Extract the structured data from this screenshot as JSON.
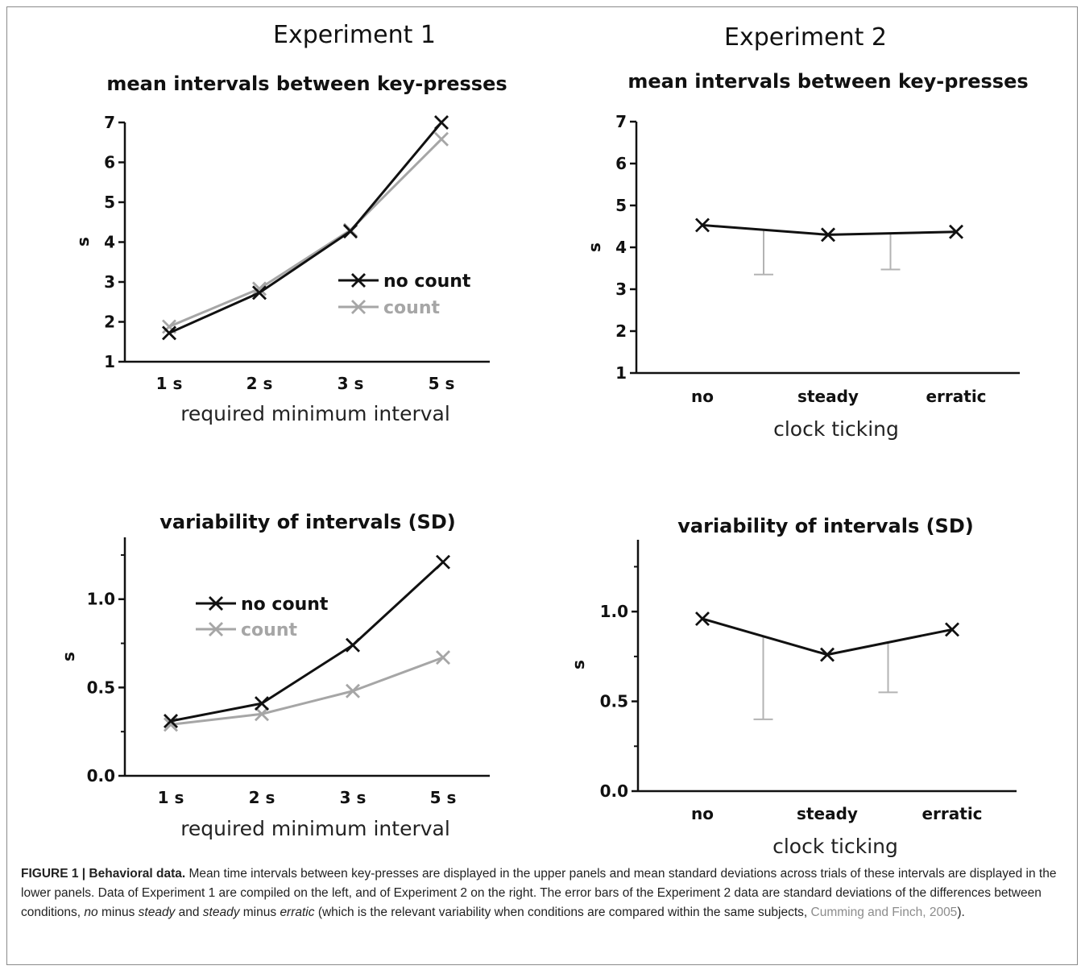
{
  "figure": {
    "experiment_titles": [
      "Experiment 1",
      "Experiment 2"
    ],
    "caption": {
      "label": "FIGURE 1 | Behavioral data.",
      "part1": " Mean time intervals between key-presses are displayed in the upper panels and mean standard deviations across trials of these intervals are displayed in the lower panels. Data of Experiment 1 are compiled on the left, and of Experiment 2 on the right. The error bars of the Experiment 2 data are standard deviations of the differences between conditions, ",
      "em1": "no",
      "part2": " minus ",
      "em2": "steady",
      "part3": " and ",
      "em3": "steady",
      "part4": " minus ",
      "em4": "erratic",
      "part5": " (which is the relevant variability when conditions are compared within the same subjects, ",
      "citation": "Cumming and Finch, 2005",
      "part6": ")."
    }
  },
  "colors": {
    "no_count": "#111111",
    "count": "#a6a6a6",
    "error_bar": "#b3b3b3",
    "axis": "#111111"
  },
  "chart_data": [
    {
      "type": "line",
      "title": "mean intervals between key-presses",
      "xlabel": "required minimum interval",
      "ylabel": "s",
      "categories": [
        "1 s",
        "2 s",
        "3 s",
        "5 s"
      ],
      "ylim": [
        1,
        7
      ],
      "yticks": [
        1,
        2,
        3,
        4,
        5,
        6,
        7
      ],
      "ytick_labels": [
        "1",
        "2",
        "3",
        "4",
        "5",
        "6",
        "7"
      ],
      "legend": "middle-right",
      "series": [
        {
          "name": "no count",
          "values": [
            1.72,
            2.73,
            4.27,
            7.0
          ]
        },
        {
          "name": "count",
          "values": [
            1.88,
            2.83,
            4.3,
            6.58
          ]
        }
      ]
    },
    {
      "type": "line",
      "title": "mean intervals between key-presses",
      "xlabel": "clock ticking",
      "ylabel": "s",
      "categories": [
        "no",
        "steady",
        "erratic"
      ],
      "ylim": [
        1,
        7
      ],
      "yticks": [
        1,
        2,
        3,
        4,
        5,
        6,
        7
      ],
      "ytick_labels": [
        "1",
        "2",
        "3",
        "4",
        "5",
        "6",
        "7"
      ],
      "series": [
        {
          "values": [
            4.53,
            4.3,
            4.37
          ]
        }
      ],
      "error_bars": [
        {
          "between": [
            0,
            1
          ],
          "top": 4.4,
          "bottom": 3.35
        },
        {
          "between": [
            1,
            2
          ],
          "top": 4.33,
          "bottom": 3.47
        }
      ]
    },
    {
      "type": "line",
      "title": "variability of intervals (SD)",
      "xlabel": "required minimum interval",
      "ylabel": "s",
      "categories": [
        "1 s",
        "2 s",
        "3 s",
        "5 s"
      ],
      "ylim": [
        0,
        1.35
      ],
      "yticks": [
        0,
        0.5,
        1.0
      ],
      "ytick_labels": [
        "0.0",
        "0.5",
        "1.0"
      ],
      "legend": "top-left",
      "series": [
        {
          "name": "no count",
          "values": [
            0.31,
            0.41,
            0.74,
            1.21
          ]
        },
        {
          "name": "count",
          "values": [
            0.29,
            0.35,
            0.48,
            0.67
          ]
        }
      ]
    },
    {
      "type": "line",
      "title": "variability of intervals (SD)",
      "xlabel": "clock ticking",
      "ylabel": "s",
      "categories": [
        "no",
        "steady",
        "erratic"
      ],
      "ylim": [
        0,
        1.4
      ],
      "yticks": [
        0,
        0.5,
        1.0
      ],
      "ytick_labels": [
        "0.0",
        "0.5",
        "1.0"
      ],
      "series": [
        {
          "values": [
            0.96,
            0.76,
            0.9
          ]
        }
      ],
      "error_bars": [
        {
          "between": [
            0,
            1
          ],
          "top": 0.86,
          "bottom": 0.4
        },
        {
          "between": [
            1,
            2
          ],
          "top": 0.83,
          "bottom": 0.55
        }
      ]
    }
  ]
}
